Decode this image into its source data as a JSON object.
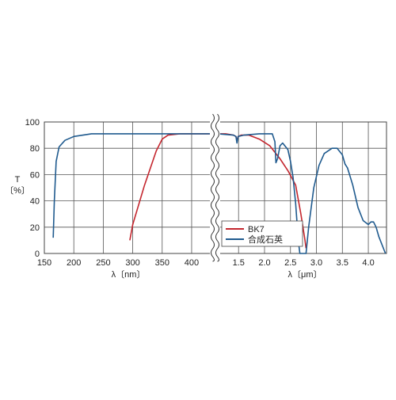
{
  "chart_data": {
    "type": "line",
    "title": "",
    "y_axis": {
      "label_line1": "T",
      "label_line2": "〔%〕",
      "ylim": [
        0,
        100
      ],
      "ticks": [
        0,
        20,
        40,
        60,
        80,
        100
      ],
      "grid": true
    },
    "x_axis_left": {
      "label": "λ〔nm〕",
      "unit": "nm",
      "xlim": [
        150,
        435
      ],
      "ticks": [
        150,
        200,
        250,
        300,
        350,
        400
      ],
      "tick_labels": [
        "150",
        "200",
        "250",
        "300",
        "350",
        "400"
      ]
    },
    "x_axis_right": {
      "label": "λ〔μm〕",
      "unit": "μm",
      "xlim": [
        1.1,
        4.35
      ],
      "ticks": [
        1.5,
        2.0,
        2.5,
        3.0,
        3.5,
        4.0
      ],
      "tick_labels": [
        "1.5",
        "2.0",
        "2.5",
        "3.0",
        "3.5",
        "4.0"
      ]
    },
    "legend": {
      "position": "bottom-right"
    },
    "series": [
      {
        "name": "BK7",
        "color": "#c4262e",
        "left": [
          [
            295,
            10
          ],
          [
            300,
            22
          ],
          [
            320,
            52
          ],
          [
            340,
            78
          ],
          [
            350,
            87
          ],
          [
            360,
            90
          ],
          [
            380,
            91
          ],
          [
            400,
            91
          ],
          [
            435,
            91
          ]
        ],
        "right": [
          [
            1.1,
            91
          ],
          [
            1.25,
            91
          ],
          [
            1.4,
            90
          ],
          [
            1.45,
            89
          ],
          [
            1.47,
            86
          ],
          [
            1.49,
            89
          ],
          [
            1.55,
            90
          ],
          [
            1.7,
            90
          ],
          [
            1.9,
            87
          ],
          [
            2.1,
            82
          ],
          [
            2.2,
            77
          ],
          [
            2.3,
            72
          ],
          [
            2.45,
            63
          ],
          [
            2.6,
            52
          ],
          [
            2.7,
            30
          ],
          [
            2.78,
            10
          ],
          [
            2.8,
            4
          ]
        ]
      },
      {
        "name": "合成石英",
        "color": "#1f5a8e",
        "left": [
          [
            165,
            12
          ],
          [
            167,
            40
          ],
          [
            170,
            70
          ],
          [
            175,
            81
          ],
          [
            185,
            86
          ],
          [
            200,
            89
          ],
          [
            230,
            91
          ],
          [
            300,
            91
          ],
          [
            435,
            91
          ]
        ],
        "right": [
          [
            1.1,
            91
          ],
          [
            1.4,
            90
          ],
          [
            1.45,
            89
          ],
          [
            1.47,
            84
          ],
          [
            1.49,
            89
          ],
          [
            1.6,
            90
          ],
          [
            1.9,
            91
          ],
          [
            2.15,
            91
          ],
          [
            2.2,
            85
          ],
          [
            2.22,
            69
          ],
          [
            2.25,
            72
          ],
          [
            2.3,
            82
          ],
          [
            2.35,
            84
          ],
          [
            2.45,
            79
          ],
          [
            2.5,
            70
          ],
          [
            2.55,
            58
          ],
          [
            2.6,
            38
          ],
          [
            2.65,
            10
          ],
          [
            2.68,
            0
          ],
          [
            2.8,
            0
          ],
          [
            2.85,
            20
          ],
          [
            2.95,
            50
          ],
          [
            3.05,
            67
          ],
          [
            3.15,
            76
          ],
          [
            3.3,
            80
          ],
          [
            3.4,
            80
          ],
          [
            3.5,
            75
          ],
          [
            3.55,
            68
          ],
          [
            3.6,
            65
          ],
          [
            3.7,
            52
          ],
          [
            3.8,
            35
          ],
          [
            3.9,
            25
          ],
          [
            4.0,
            22
          ],
          [
            4.05,
            24
          ],
          [
            4.1,
            24
          ],
          [
            4.15,
            20
          ],
          [
            4.2,
            13
          ],
          [
            4.3,
            3
          ],
          [
            4.33,
            0
          ]
        ]
      }
    ]
  }
}
